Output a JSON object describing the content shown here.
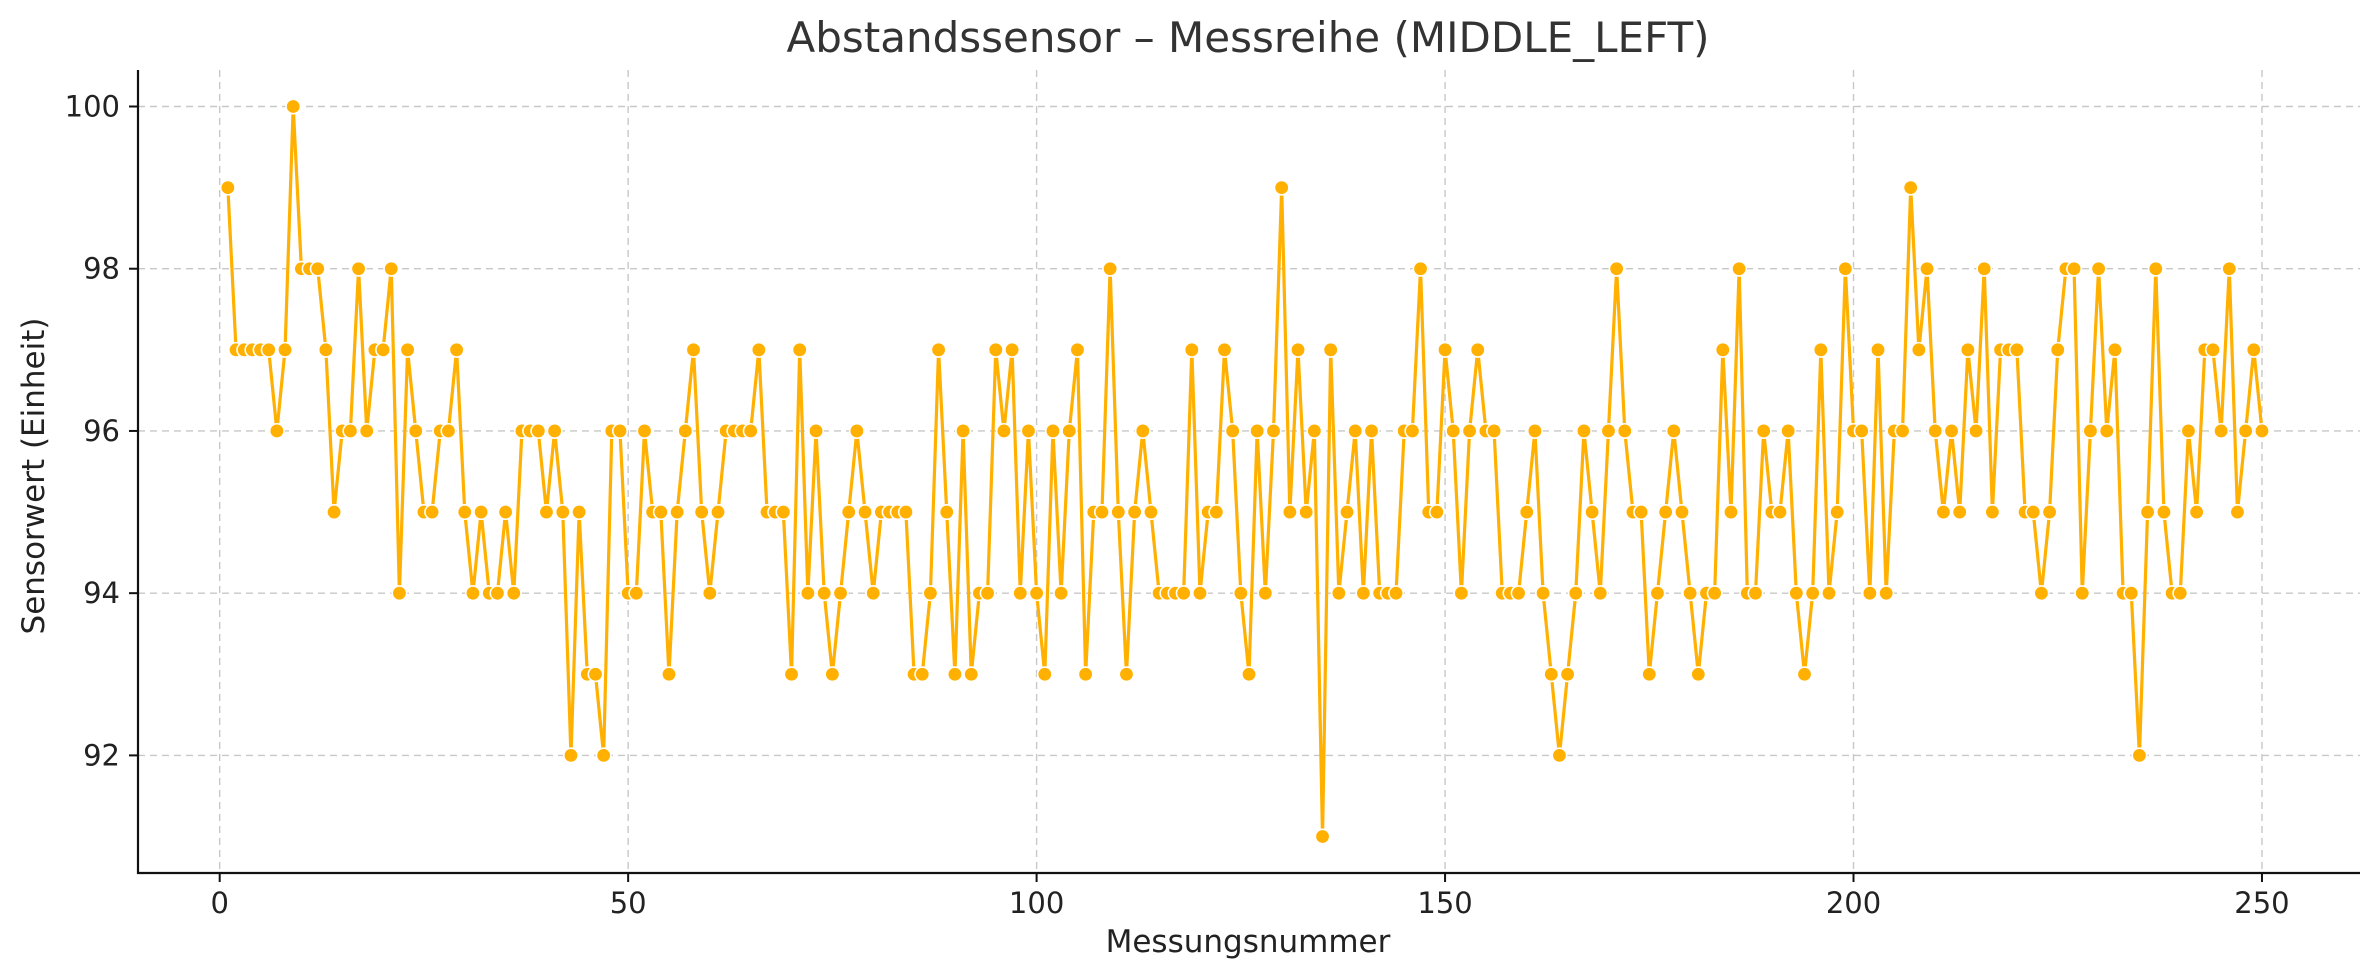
{
  "chart_data": {
    "type": "line",
    "title": "Abstandssensor – Messreihe (MIDDLE_LEFT)",
    "xlabel": "Messungsnummer",
    "ylabel": "Sensorwert (Einheit)",
    "xlim": [
      -10,
      262
    ],
    "ylim": [
      90.55,
      100.45
    ],
    "xticks": [
      0,
      50,
      100,
      150,
      200,
      250
    ],
    "yticks": [
      92,
      94,
      96,
      98,
      100
    ],
    "grid": true,
    "color": "#ffb000",
    "marker": "circle",
    "series": [
      {
        "x": [
          1,
          2,
          3,
          4,
          5,
          6,
          7,
          8,
          9,
          10,
          11,
          12,
          13,
          14,
          15,
          16,
          17,
          18,
          19,
          20,
          21,
          22,
          23,
          24,
          25,
          26,
          27,
          28,
          29,
          30,
          31,
          32,
          33,
          34,
          35,
          36,
          37,
          38,
          39,
          40,
          41,
          42,
          43,
          44,
          45,
          46,
          47,
          48,
          49,
          50,
          51,
          52,
          53,
          54,
          55,
          56,
          57,
          58,
          59,
          60,
          61,
          62,
          63,
          64,
          65,
          66,
          67,
          68,
          69,
          70,
          71,
          72,
          73,
          74,
          75,
          76,
          77,
          78,
          79,
          80,
          81,
          82,
          83,
          84,
          85,
          86,
          87,
          88,
          89,
          90,
          91,
          92,
          93,
          94,
          95,
          96,
          97,
          98,
          99,
          100,
          101,
          102,
          103,
          104,
          105,
          106,
          107,
          108,
          109,
          110,
          111,
          112,
          113,
          114,
          115,
          116,
          117,
          118,
          119,
          120,
          121,
          122,
          123,
          124,
          125,
          126,
          127,
          128,
          129,
          130,
          131,
          132,
          133,
          134,
          135,
          136,
          137,
          138,
          139,
          140,
          141,
          142,
          143,
          144,
          145,
          146,
          147,
          148,
          149,
          150,
          151,
          152,
          153,
          154,
          155,
          156,
          157,
          158,
          159,
          160,
          161,
          162,
          163,
          164,
          165,
          166,
          167,
          168,
          169,
          170,
          171,
          172,
          173,
          174,
          175,
          176,
          177,
          178,
          179,
          180,
          181,
          182,
          183,
          184,
          185,
          186,
          187,
          188,
          189,
          190,
          191,
          192,
          193,
          194,
          195,
          196,
          197,
          198,
          199,
          200,
          201,
          202,
          203,
          204,
          205,
          206,
          207,
          208,
          209,
          210,
          211,
          212,
          213,
          214,
          215,
          216,
          217,
          218,
          219,
          220,
          221,
          222,
          223,
          224,
          225,
          226,
          227,
          228,
          229,
          230,
          231,
          232,
          233,
          234,
          235,
          236,
          237,
          238,
          239,
          240,
          241,
          242,
          243,
          244,
          245,
          246,
          247,
          248,
          249,
          250
        ],
        "y": [
          99,
          97,
          97,
          97,
          97,
          97,
          96,
          97,
          100,
          98,
          98,
          98,
          97,
          95,
          96,
          96,
          98,
          96,
          97,
          97,
          98,
          94,
          97,
          96,
          95,
          95,
          96,
          96,
          97,
          95,
          94,
          95,
          94,
          94,
          95,
          94,
          96,
          96,
          96,
          95,
          96,
          95,
          92,
          95,
          93,
          93,
          92,
          96,
          96,
          94,
          94,
          96,
          95,
          95,
          93,
          95,
          96,
          97,
          95,
          94,
          95,
          96,
          96,
          96,
          96,
          97,
          95,
          95,
          95,
          93,
          97,
          94,
          96,
          94,
          93,
          94,
          95,
          96,
          95,
          94,
          95,
          95,
          95,
          95,
          93,
          93,
          94,
          97,
          95,
          93,
          96,
          93,
          94,
          94,
          97,
          96,
          97,
          94,
          96,
          94,
          93,
          96,
          94,
          96,
          97,
          93,
          95,
          95,
          98,
          95,
          93,
          95,
          96,
          95,
          94,
          94,
          94,
          94,
          97,
          94,
          95,
          95,
          97,
          96,
          94,
          93,
          96,
          94,
          96,
          99,
          95,
          97,
          95,
          96,
          91,
          97,
          94,
          95,
          96,
          94,
          96,
          94,
          94,
          94,
          96,
          96,
          98,
          95,
          95,
          97,
          96,
          94,
          96,
          97,
          96,
          96,
          94,
          94,
          94,
          95,
          96,
          94,
          93,
          92,
          93,
          94,
          96,
          95,
          94,
          96,
          98,
          96,
          95,
          95,
          93,
          94,
          95,
          96,
          95,
          94,
          93,
          94,
          94,
          97,
          95,
          98,
          94,
          94,
          96,
          95,
          95,
          96,
          94,
          93,
          94,
          97,
          94,
          95,
          98,
          96,
          96,
          94,
          97,
          94,
          96,
          96,
          99,
          97,
          98,
          96,
          95,
          96,
          95,
          97,
          96,
          98,
          95,
          97,
          97,
          97,
          95,
          95,
          94,
          95,
          97,
          98,
          98,
          94,
          96,
          98,
          96,
          97,
          94,
          94,
          92,
          95,
          98,
          95,
          94,
          94,
          96,
          95,
          97,
          97,
          96,
          98,
          95,
          96,
          97,
          96
        ]
      }
    ]
  }
}
